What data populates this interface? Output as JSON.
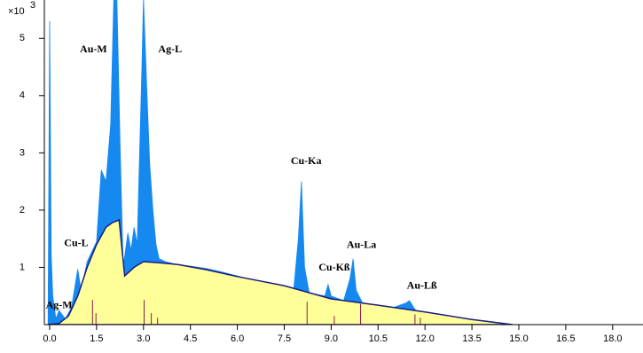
{
  "chart_data": {
    "type": "area",
    "y_scale_label": "×10",
    "y_scale_exponent": "3",
    "xlim": [
      -0.17,
      18.97
    ],
    "ylim": [
      0,
      5.67
    ],
    "xticks": [
      {
        "value": 0,
        "label": "0.0"
      },
      {
        "value": 1.5,
        "label": "1.5"
      },
      {
        "value": 3,
        "label": "3.0"
      },
      {
        "value": 4.5,
        "label": "4.5"
      },
      {
        "value": 6,
        "label": "6.0"
      },
      {
        "value": 7.5,
        "label": "7.5"
      },
      {
        "value": 9,
        "label": "9.0"
      },
      {
        "value": 10.5,
        "label": "10.5"
      },
      {
        "value": 12,
        "label": "12.0"
      },
      {
        "value": 13.5,
        "label": "13.5"
      },
      {
        "value": 15,
        "label": "15.0"
      },
      {
        "value": 16.5,
        "label": "16.5"
      },
      {
        "value": 18,
        "label": "18.0"
      }
    ],
    "yticks": [
      1,
      2,
      3,
      4,
      5
    ],
    "series": [
      {
        "color": "#1589f0",
        "x": [
          -0.05,
          0,
          0.05,
          0.1,
          0.2,
          0.3,
          0.5,
          0.7,
          0.9,
          1.0,
          1.2,
          1.5,
          1.65,
          1.8,
          1.95,
          2.05,
          2.15,
          2.25,
          2.35,
          2.5,
          2.6,
          2.7,
          2.8,
          2.95,
          3.0,
          3.1,
          3.2,
          3.3,
          3.4,
          3.5,
          3.7,
          4.0,
          4.5,
          5.0,
          5.5,
          6.0,
          6.5,
          7.0,
          7.5,
          7.8,
          7.95,
          8.05,
          8.15,
          8.3,
          8.8,
          8.9,
          9.0,
          9.4,
          9.6,
          9.7,
          9.8,
          10.0,
          10.5,
          11.0,
          11.4,
          11.5,
          11.7,
          12.0,
          13.0,
          13.5,
          14.0,
          14.8
        ],
        "values": [
          0,
          5.3,
          1.2,
          0.5,
          0.1,
          0.25,
          0.1,
          0.3,
          0.97,
          0.6,
          1.1,
          1.45,
          2.7,
          2.5,
          3.5,
          5.7,
          5.7,
          3.2,
          1.0,
          1.6,
          1.3,
          1.7,
          1.4,
          4.5,
          5.7,
          4.2,
          2.8,
          2.0,
          1.4,
          1.15,
          1.1,
          1.06,
          1.02,
          0.98,
          0.92,
          0.85,
          0.78,
          0.72,
          0.68,
          0.6,
          1.5,
          2.5,
          1.0,
          0.55,
          0.5,
          0.7,
          0.5,
          0.42,
          0.8,
          1.15,
          0.6,
          0.38,
          0.34,
          0.3,
          0.38,
          0.42,
          0.25,
          0.22,
          0.13,
          0.09,
          0.06,
          0
        ]
      },
      {
        "color": "#ffff99",
        "outline": "#1a1a80",
        "x": [
          -0.05,
          0.3,
          0.6,
          0.9,
          1.2,
          1.5,
          1.8,
          2.0,
          2.22,
          2.4,
          2.7,
          3.0,
          3.5,
          4.1,
          5.0,
          6.0,
          7.5,
          9.0,
          10.5,
          12.0,
          13.5,
          14.8
        ],
        "values": [
          0,
          0.02,
          0.15,
          0.5,
          1.0,
          1.4,
          1.7,
          1.78,
          1.83,
          0.85,
          1.0,
          1.1,
          1.08,
          1.05,
          0.96,
          0.84,
          0.68,
          0.45,
          0.34,
          0.22,
          0.09,
          0
        ]
      }
    ],
    "element_lines": {
      "color": "#8b1a4a",
      "x": [
        1.37,
        1.48,
        3.02,
        3.25,
        3.45,
        8.23,
        9.1,
        9.94,
        11.68,
        11.85
      ],
      "values": [
        0.43,
        0.2,
        0.43,
        0.2,
        0.12,
        0.4,
        0.15,
        0.36,
        0.18,
        0.12
      ]
    },
    "annotations": [
      {
        "text": "Au-M",
        "x": 1.4,
        "y": 4.8
      },
      {
        "text": "Ag-L",
        "x": 3.85,
        "y": 4.8
      },
      {
        "text": "Cu-Ka",
        "x": 8.2,
        "y": 2.85
      },
      {
        "text": "Cu-Kß",
        "x": 9.1,
        "y": 0.99
      },
      {
        "text": "Au-La",
        "x": 9.97,
        "y": 1.38
      },
      {
        "text": "Au-Lß",
        "x": 11.9,
        "y": 0.67
      },
      {
        "text": "Cu-L",
        "x": 0.85,
        "y": 1.41
      },
      {
        "text": "Ag-M",
        "x": 0.3,
        "y": 0.33
      }
    ]
  }
}
